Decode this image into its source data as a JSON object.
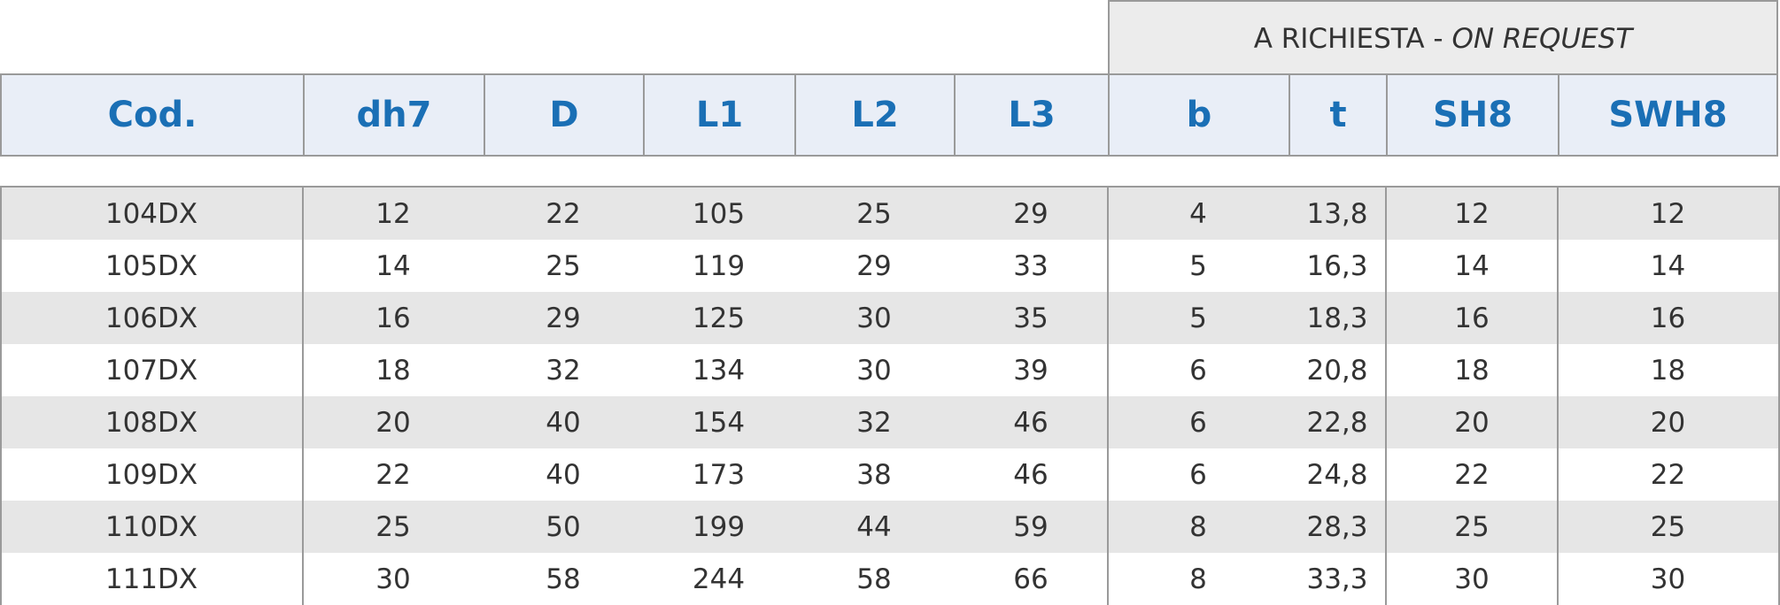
{
  "request_header": {
    "text": "A RICHIESTA -",
    "italic_text": "ON REQUEST"
  },
  "table": {
    "headers": [
      "Cod.",
      "dh7",
      "D",
      "L1",
      "L2",
      "L3",
      "b",
      "t",
      "SH8",
      "SWH8"
    ],
    "rows": [
      [
        "104DX",
        "12",
        "22",
        "105",
        "25",
        "29",
        "4",
        "13,8",
        "12",
        "12"
      ],
      [
        "105DX",
        "14",
        "25",
        "119",
        "29",
        "33",
        "5",
        "16,3",
        "14",
        "14"
      ],
      [
        "106DX",
        "16",
        "29",
        "125",
        "30",
        "35",
        "5",
        "18,3",
        "16",
        "16"
      ],
      [
        "107DX",
        "18",
        "32",
        "134",
        "30",
        "39",
        "6",
        "20,8",
        "18",
        "18"
      ],
      [
        "108DX",
        "20",
        "40",
        "154",
        "32",
        "46",
        "6",
        "22,8",
        "20",
        "20"
      ],
      [
        "109DX",
        "22",
        "40",
        "173",
        "38",
        "46",
        "6",
        "24,8",
        "22",
        "22"
      ],
      [
        "110DX",
        "25",
        "50",
        "199",
        "44",
        "59",
        "8",
        "28,3",
        "25",
        "25"
      ],
      [
        "111DX",
        "30",
        "58",
        "244",
        "58",
        "66",
        "8",
        "33,3",
        "30",
        "30"
      ]
    ]
  }
}
